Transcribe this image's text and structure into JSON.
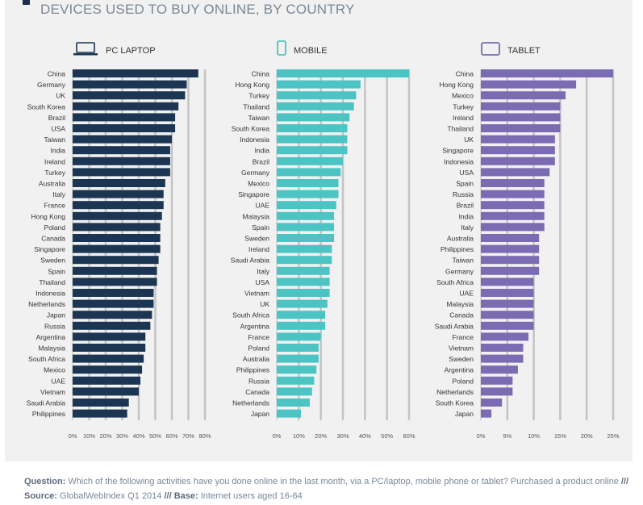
{
  "title": "DEVICES USED TO BUY ONLINE, BY COUNTRY",
  "colors": {
    "pc": "#1b3552",
    "mobile": "#4cc4c4",
    "tablet": "#7a6bb3",
    "grid": "#c4c4c4",
    "text": "#333333"
  },
  "chart_data": [
    {
      "type": "bar",
      "title": "PC LAPTOP",
      "icon": "laptop-icon",
      "categories": [
        "China",
        "Germany",
        "UK",
        "South Korea",
        "Brazil",
        "USA",
        "Taiwan",
        "India",
        "Ireland",
        "Turkey",
        "Australia",
        "Italy",
        "France",
        "Hong Kong",
        "Poland",
        "Canada",
        "Singapore",
        "Sweden",
        "Spain",
        "Thailand",
        "Indonesia",
        "Netherlands",
        "Japan",
        "Russia",
        "Argentina",
        "Malaysia",
        "South Africa",
        "Mexico",
        "UAE",
        "Vietnam",
        "Saudi Arabia",
        "Philippines"
      ],
      "values": [
        76,
        69,
        68,
        64,
        62,
        62,
        60,
        59,
        59,
        59,
        56,
        55,
        55,
        54,
        53,
        53,
        53,
        52,
        51,
        51,
        49,
        49,
        48,
        47,
        44,
        44,
        43,
        42,
        41,
        40,
        34,
        33
      ],
      "xlim": [
        0,
        80
      ],
      "xticks": [
        "0%",
        "10%",
        "20%",
        "30%",
        "40%",
        "50%",
        "60%",
        "70%",
        "80%"
      ]
    },
    {
      "type": "bar",
      "title": "MOBILE",
      "icon": "mobile-phone-icon",
      "categories": [
        "China",
        "Hong Kong",
        "Turkey",
        "Thailand",
        "Taiwan",
        "South Korea",
        "Indonesia",
        "India",
        "Brazil",
        "Germany",
        "Mexico",
        "Singapore",
        "UAE",
        "Malaysia",
        "Spain",
        "Sweden",
        "Ireland",
        "Saudi Arabia",
        "Italy",
        "USA",
        "Vietnam",
        "UK",
        "South Africa",
        "Argentina",
        "France",
        "Poland",
        "Australia",
        "Philippines",
        "Russia",
        "Canada",
        "Netherlands",
        "Japan"
      ],
      "values": [
        60,
        38,
        36,
        35,
        33,
        32,
        32,
        32,
        30,
        29,
        28,
        28,
        27,
        26,
        26,
        26,
        25,
        25,
        24,
        24,
        24,
        23,
        22,
        22,
        20,
        19,
        19,
        18,
        17,
        16,
        15,
        11
      ],
      "xlim": [
        0,
        60
      ],
      "xticks": [
        "0%",
        "10%",
        "20%",
        "30%",
        "40%",
        "50%",
        "60%"
      ]
    },
    {
      "type": "bar",
      "title": "TABLET",
      "icon": "tablet-icon",
      "categories": [
        "China",
        "Hong Kong",
        "Mexico",
        "Turkey",
        "Ireland",
        "Thailand",
        "UK",
        "Singapore",
        "Indonesia",
        "USA",
        "Spain",
        "Russia",
        "Brazil",
        "India",
        "Italy",
        "Australia",
        "Philippines",
        "Taiwan",
        "Germany",
        "South Africa",
        "UAE",
        "Malaysia",
        "Canada",
        "Saudi Arabia",
        "France",
        "Vietnam",
        "Sweden",
        "Argentina",
        "Poland",
        "Netherlands",
        "South Korea",
        "Japan"
      ],
      "values": [
        25,
        18,
        16,
        15,
        15,
        15,
        14,
        14,
        14,
        13,
        12,
        12,
        12,
        12,
        12,
        11,
        11,
        11,
        11,
        10,
        10,
        10,
        10,
        10,
        9,
        8,
        8,
        7,
        6,
        6,
        4,
        2
      ],
      "xlim": [
        0,
        25
      ],
      "xticks": [
        "0%",
        "5%",
        "10%",
        "15%",
        "20%",
        "25%"
      ]
    }
  ],
  "footer": {
    "question_label": "Question:",
    "question_text": "Which of the following activities have you done online in the last month, via a PC/laptop, mobile phone or tablet? Purchased a product online",
    "sep1": "///",
    "source_label": "Source:",
    "source_text": "GlobalWebIndex Q1 2014",
    "sep2": "///",
    "base_label": "Base:",
    "base_text": "Internet users aged 16-64"
  }
}
